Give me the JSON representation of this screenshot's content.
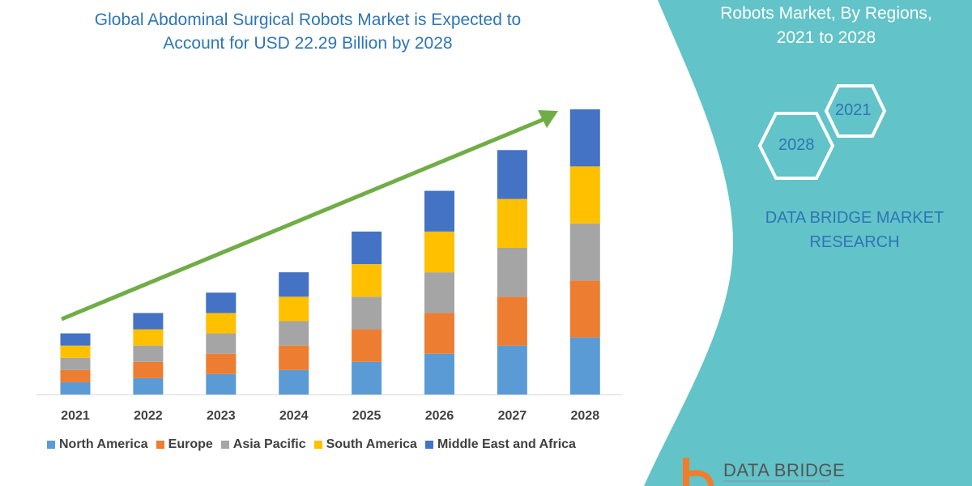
{
  "title": "Global Abdominal Surgical Robots Market is Expected to Account for USD 22.29 Billion by 2028",
  "title_lines": [
    "Global Abdominal Surgical Robots Market is Expected to",
    "Account for USD 22.29 Billion by 2028"
  ],
  "panel": {
    "title_lines": [
      "Robots Market, By Regions,",
      "2021 to 2028"
    ],
    "hex_labels": [
      "2021",
      "2028"
    ],
    "brand_lines": [
      "DATA BRIDGE MARKET",
      "RESEARCH"
    ],
    "logo_text": "DATA BRIDGE",
    "bg_color": "#62c3c8"
  },
  "chart_data": {
    "type": "bar",
    "stacked": true,
    "title": "Global Abdominal Surgical Robots Market is Expected to Account for USD 22.29 Billion by 2028",
    "categories": [
      "2021",
      "2022",
      "2023",
      "2024",
      "2025",
      "2026",
      "2027",
      "2028"
    ],
    "series": [
      {
        "name": "North America",
        "color": "#5b9bd5",
        "values": [
          15,
          20,
          25,
          30,
          40,
          50,
          60,
          70
        ]
      },
      {
        "name": "Europe",
        "color": "#ed7d31",
        "values": [
          15,
          20,
          25,
          30,
          40,
          50,
          60,
          70
        ]
      },
      {
        "name": "Asia Pacific",
        "color": "#a5a5a5",
        "values": [
          15,
          20,
          25,
          30,
          40,
          50,
          60,
          70
        ]
      },
      {
        "name": "South America",
        "color": "#ffc000",
        "values": [
          15,
          20,
          25,
          30,
          40,
          50,
          60,
          70
        ]
      },
      {
        "name": "Middle East and Africa",
        "color": "#4472c4",
        "values": [
          15,
          20,
          25,
          30,
          40,
          50,
          60,
          70
        ]
      }
    ],
    "ylim": [
      0,
      360
    ],
    "y_axis_shown": false,
    "grid": false,
    "legend_placement": "bottom",
    "trend_arrow_color": "#70ad47"
  }
}
